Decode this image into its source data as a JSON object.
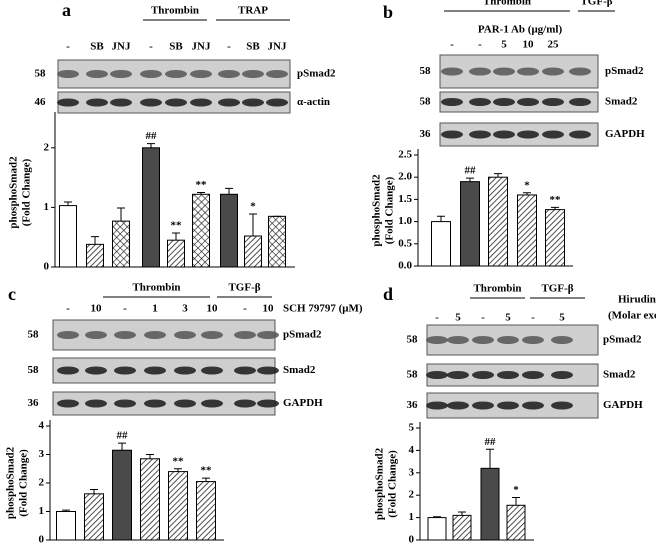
{
  "chart_data": [
    {
      "type": "bar",
      "panel": "a",
      "groups": [
        "Thrombin",
        "TRAP"
      ],
      "treatment": null,
      "lanes": [
        "-",
        "SB",
        "JNJ",
        "-",
        "SB",
        "JNJ",
        "-",
        "SB",
        "JNJ"
      ],
      "blots": [
        {
          "mw": 58,
          "label": "pSmad2"
        },
        {
          "mw": 46,
          "label": "α-actin"
        }
      ],
      "ylabel": [
        "phosphoSmad2",
        "(Fold Change)"
      ],
      "values": [
        1.03,
        0.38,
        0.77,
        2.0,
        0.45,
        1.22,
        1.22,
        0.52,
        0.85
      ],
      "errors": [
        0.06,
        0.13,
        0.22,
        0.07,
        0.12,
        0.03,
        0.1,
        0.37,
        0
      ],
      "annotations": [
        null,
        null,
        null,
        "##",
        "**",
        "**",
        null,
        "*",
        null
      ],
      "fills": [
        "white",
        "hatch",
        "cross",
        "#4a4a4a",
        "hatch",
        "cross",
        "#4a4a4a",
        "hatch",
        "cross"
      ],
      "ylim": [
        0,
        2.5
      ],
      "yticks": [
        0,
        1,
        2
      ]
    },
    {
      "type": "bar",
      "panel": "b",
      "groups": [
        "Thrombin",
        "TGF-β"
      ],
      "treatment": [
        "PAR-1 Ab (μg/ml)"
      ],
      "lanes": [
        "-",
        "-",
        "5",
        "10",
        "25"
      ],
      "blots": [
        {
          "mw": 58,
          "label": "pSmad2"
        },
        {
          "mw": 58,
          "label": "Smad2"
        },
        {
          "mw": 36,
          "label": "GAPDH"
        }
      ],
      "ylabel": [
        "phosphoSmad2",
        "(Fold Change)"
      ],
      "values": [
        1.0,
        1.9,
        2.0,
        1.6,
        1.27
      ],
      "errors": [
        0.12,
        0.08,
        0.08,
        0.05,
        0.05
      ],
      "annotations": [
        null,
        "##",
        null,
        "*",
        "**"
      ],
      "fills": [
        "white",
        "#4a4a4a",
        "hatch",
        "hatch",
        "hatch"
      ],
      "ylim": [
        0,
        2.5
      ],
      "yticks": [
        {
          "value": 0,
          "label": "0.0"
        },
        {
          "value": 0.5,
          "label": "0.5"
        },
        {
          "value": 1,
          "label": "1.0"
        },
        {
          "value": 1.5,
          "label": "1.5"
        },
        {
          "value": 2,
          "label": "2.0"
        },
        {
          "value": 2.5,
          "label": "2.5"
        }
      ]
    },
    {
      "type": "bar",
      "panel": "c",
      "groups": [
        "Thrombin",
        "TGF-β"
      ],
      "treatment": [
        "SCH 79797 (μM)"
      ],
      "lanes": [
        "-",
        "10",
        "-",
        "1",
        "3",
        "10",
        "-",
        "10"
      ],
      "blots": [
        {
          "mw": 58,
          "label": "pSmad2"
        },
        {
          "mw": 58,
          "label": "Smad2"
        },
        {
          "mw": 36,
          "label": "GAPDH"
        }
      ],
      "ylabel": [
        "phosphoSmad2",
        "(Fold Change)"
      ],
      "values": [
        1.0,
        1.62,
        3.15,
        2.85,
        2.4,
        2.05
      ],
      "errors": [
        0.05,
        0.15,
        0.25,
        0.15,
        0.1,
        0.12
      ],
      "annotations": [
        null,
        null,
        "##",
        null,
        "**",
        "**"
      ],
      "fills": [
        "white",
        "hatch",
        "#4a4a4a",
        "hatch",
        "hatch",
        "hatch"
      ],
      "ylim": [
        0,
        4
      ],
      "yticks": [
        0,
        1,
        2,
        3,
        4
      ]
    },
    {
      "type": "bar",
      "panel": "d",
      "groups": [
        "Thrombin",
        "TGF-β"
      ],
      "treatment": [
        "Hirudin",
        "(Molar excess)"
      ],
      "lanes": [
        "-",
        "5",
        "-",
        "5",
        "-",
        "5"
      ],
      "blots": [
        {
          "mw": 58,
          "label": "pSmad2"
        },
        {
          "mw": 58,
          "label": "Smad2"
        },
        {
          "mw": 36,
          "label": "GAPDH"
        }
      ],
      "ylabel": [
        "phosphoSmad2",
        "(Fold Change)"
      ],
      "values": [
        1.0,
        1.1,
        3.2,
        1.55
      ],
      "errors": [
        0.04,
        0.15,
        0.85,
        0.35
      ],
      "annotations": [
        null,
        null,
        "##",
        "*"
      ],
      "fills": [
        "white",
        "hatch",
        "#4a4a4a",
        "hatch"
      ],
      "ylim": [
        0,
        5
      ],
      "yticks": [
        0,
        1,
        2,
        3,
        4,
        5
      ]
    }
  ]
}
